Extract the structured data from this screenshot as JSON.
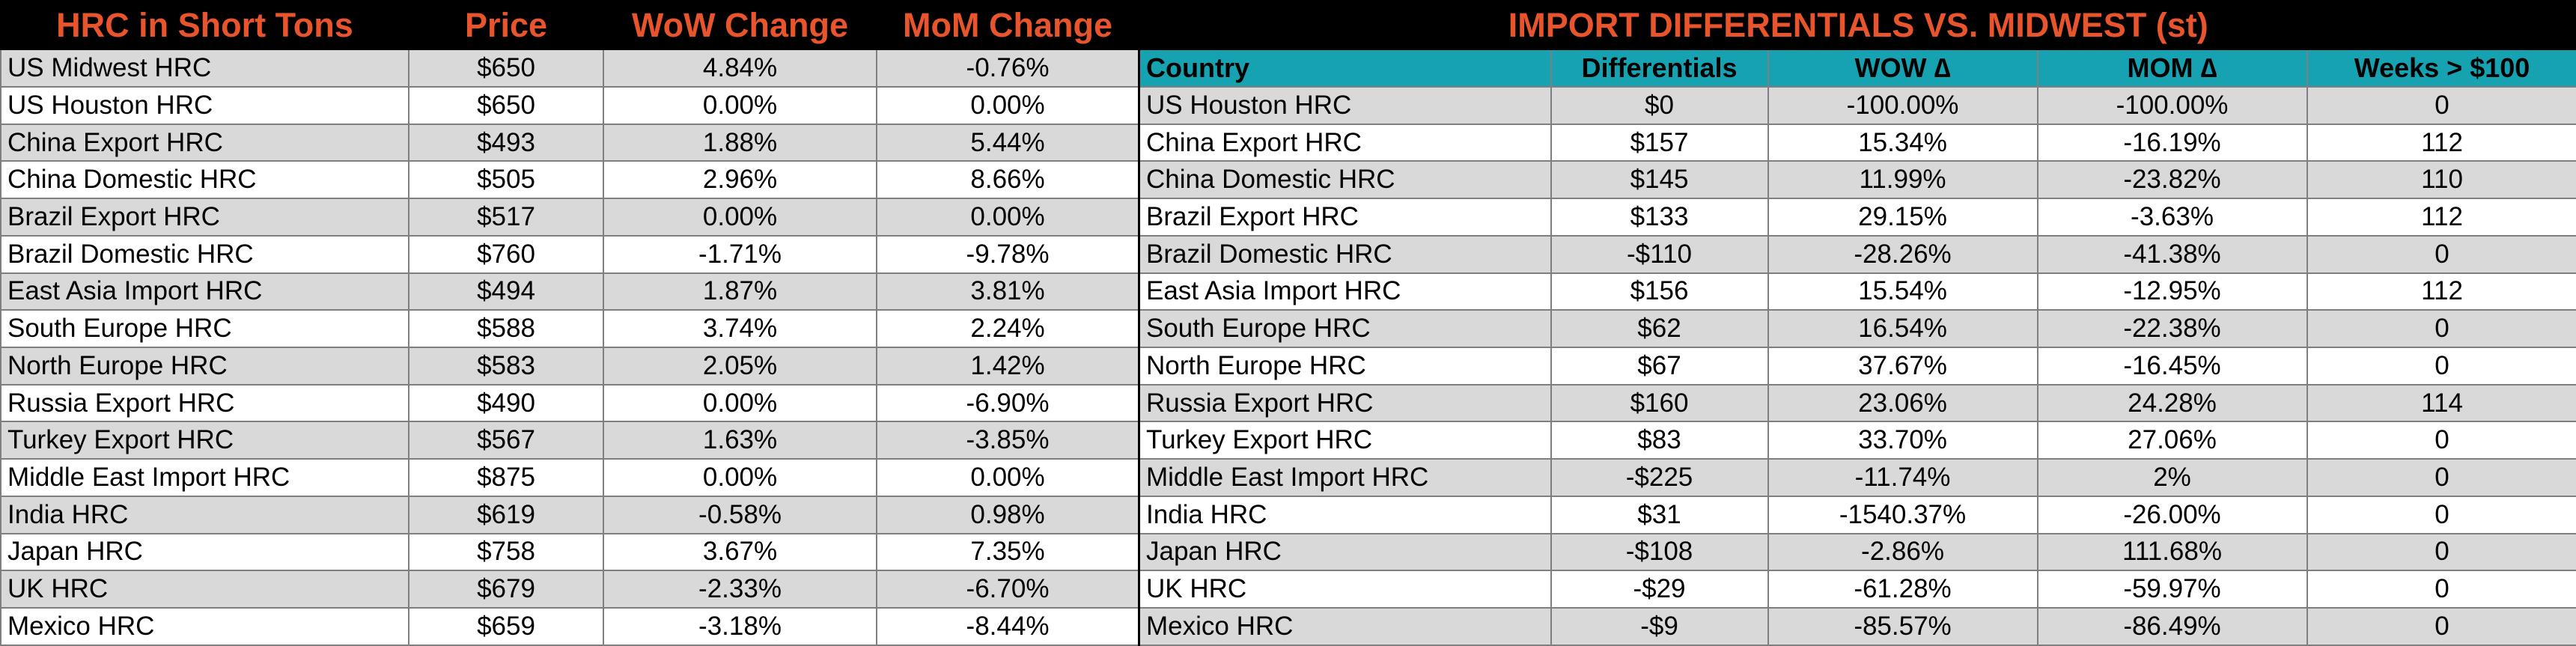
{
  "left": {
    "headers": [
      "HRC in Short Tons",
      "Price",
      "WoW Change",
      "MoM Change"
    ],
    "rows": [
      [
        "US Midwest HRC",
        "$650",
        "4.84%",
        "-0.76%"
      ],
      [
        "US Houston HRC",
        "$650",
        "0.00%",
        "0.00%"
      ],
      [
        "China Export HRC",
        "$493",
        "1.88%",
        "5.44%"
      ],
      [
        "China Domestic HRC",
        "$505",
        "2.96%",
        "8.66%"
      ],
      [
        "Brazil Export HRC",
        "$517",
        "0.00%",
        "0.00%"
      ],
      [
        "Brazil Domestic HRC",
        "$760",
        "-1.71%",
        "-9.78%"
      ],
      [
        "East Asia Import HRC",
        "$494",
        "1.87%",
        "3.81%"
      ],
      [
        "South Europe HRC",
        "$588",
        "3.74%",
        "2.24%"
      ],
      [
        "North Europe HRC",
        "$583",
        "2.05%",
        "1.42%"
      ],
      [
        "Russia Export HRC",
        "$490",
        "0.00%",
        "-6.90%"
      ],
      [
        "Turkey Export HRC",
        "$567",
        "1.63%",
        "-3.85%"
      ],
      [
        "Middle East Import HRC",
        "$875",
        "0.00%",
        "0.00%"
      ],
      [
        "India HRC",
        "$619",
        "-0.58%",
        "0.98%"
      ],
      [
        "Japan HRC",
        "$758",
        "3.67%",
        "7.35%"
      ],
      [
        "UK HRC",
        "$679",
        "-2.33%",
        "-6.70%"
      ],
      [
        "Mexico HRC",
        "$659",
        "-3.18%",
        "-8.44%"
      ]
    ]
  },
  "right": {
    "title": "IMPORT DIFFERENTIALS VS. MIDWEST (st)",
    "headers": [
      "Country",
      "Differentials",
      "WOW ∆",
      "MOM ∆",
      "Weeks > $100"
    ],
    "rows": [
      [
        "US Houston HRC",
        "$0",
        "-100.00%",
        "-100.00%",
        "0"
      ],
      [
        "China Export HRC",
        "$157",
        "15.34%",
        "-16.19%",
        "112"
      ],
      [
        "China Domestic HRC",
        "$145",
        "11.99%",
        "-23.82%",
        "110"
      ],
      [
        "Brazil Export HRC",
        "$133",
        "29.15%",
        "-3.63%",
        "112"
      ],
      [
        "Brazil Domestic HRC",
        "-$110",
        "-28.26%",
        "-41.38%",
        "0"
      ],
      [
        "East Asia Import HRC",
        "$156",
        "15.54%",
        "-12.95%",
        "112"
      ],
      [
        "South Europe HRC",
        "$62",
        "16.54%",
        "-22.38%",
        "0"
      ],
      [
        "North Europe HRC",
        "$67",
        "37.67%",
        "-16.45%",
        "0"
      ],
      [
        "Russia Export HRC",
        "$160",
        "23.06%",
        "24.28%",
        "114"
      ],
      [
        "Turkey Export HRC",
        "$83",
        "33.70%",
        "27.06%",
        "0"
      ],
      [
        "Middle East Import HRC",
        "-$225",
        "-11.74%",
        "2%",
        "0"
      ],
      [
        "India HRC",
        "$31",
        "-1540.37%",
        "-26.00%",
        "0"
      ],
      [
        "Japan HRC",
        "-$108",
        "-2.86%",
        "111.68%",
        "0"
      ],
      [
        "UK HRC",
        "-$29",
        "-61.28%",
        "-59.97%",
        "0"
      ],
      [
        "Mexico HRC",
        "-$9",
        "-85.57%",
        "-86.49%",
        "0"
      ]
    ]
  },
  "colors": {
    "title_bg": "#000000",
    "title_text": "#e8542c",
    "header_bg": "#17a2b2",
    "row_alt": "#d9d9d9",
    "row_plain": "#ffffff"
  }
}
